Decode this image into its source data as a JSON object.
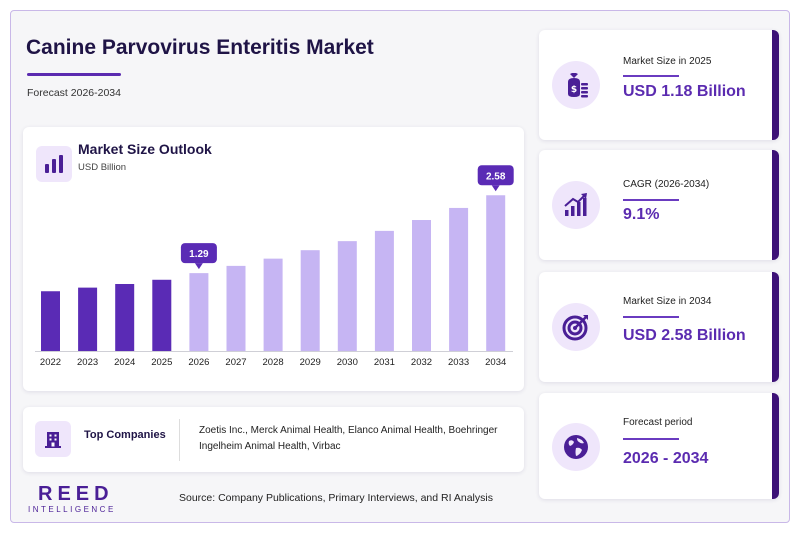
{
  "header": {
    "title": "Canine Parvovirus Enteritis Market",
    "subtitle": "Forecast 2026-2034"
  },
  "chart": {
    "title": "Market Size Outlook",
    "unit": "USD Billion"
  },
  "chart_data": {
    "type": "bar",
    "title": "Market Size Outlook",
    "ylabel": "USD Billion",
    "categories": [
      "2022",
      "2023",
      "2024",
      "2025",
      "2026",
      "2027",
      "2028",
      "2029",
      "2030",
      "2031",
      "2032",
      "2033",
      "2034"
    ],
    "values": [
      0.99,
      1.05,
      1.11,
      1.18,
      1.29,
      1.41,
      1.53,
      1.67,
      1.82,
      1.99,
      2.17,
      2.37,
      2.58
    ],
    "callouts": [
      {
        "category": "2026",
        "label": "1.29"
      },
      {
        "category": "2034",
        "label": "2.58"
      }
    ],
    "historical_color": "#5a2bb5",
    "forecast_color": "#c6b5f3",
    "ylim": [
      0,
      2.75
    ],
    "grid": false,
    "legend": "none"
  },
  "companies": {
    "title": "Top Companies",
    "text": "Zoetis Inc., Merck Animal Health, Elanco Animal Health, Boehringer Ingelheim Animal Health, Virbac"
  },
  "logo": {
    "main": "REED",
    "sub": "INTELLIGENCE"
  },
  "source": "Source: Company Publications, Primary Interviews, and RI Analysis",
  "kpis": [
    {
      "label": "Market Size in 2025",
      "value": "USD 1.18 Billion",
      "icon": "money-bag-icon"
    },
    {
      "label": "CAGR (2026-2034)",
      "value": "9.1%",
      "icon": "growth-chart-icon"
    },
    {
      "label": "Market Size in 2034",
      "value": "USD 2.58 Billion",
      "icon": "target-icon"
    },
    {
      "label": "Forecast period",
      "value": "2026 - 2034",
      "icon": "globe-icon"
    }
  ],
  "colors": {
    "accent": "#5b2bb0",
    "dark": "#3d1277",
    "light": "#efe6fb"
  }
}
